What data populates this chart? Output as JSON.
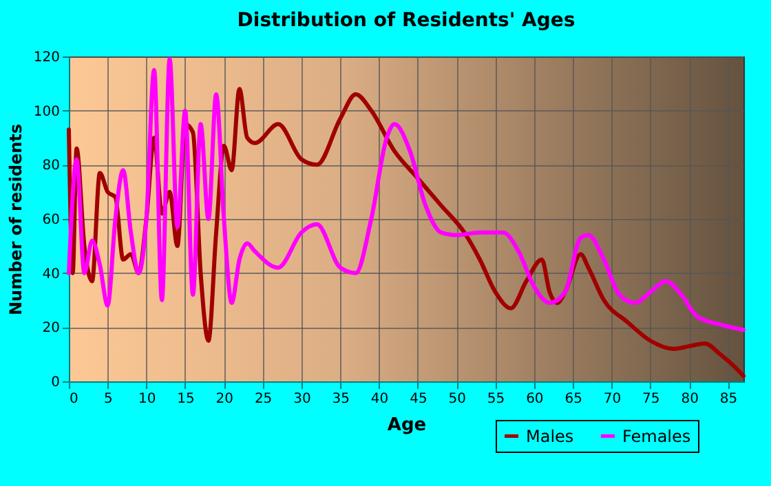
{
  "chart_data": {
    "type": "line",
    "title": "Distribution of Residents' Ages",
    "xlabel": "Age",
    "ylabel": "Number of residents",
    "xlim": [
      0,
      87
    ],
    "xticks": [
      0,
      5,
      10,
      15,
      20,
      25,
      30,
      35,
      40,
      45,
      50,
      55,
      60,
      65,
      70,
      75,
      80,
      85
    ],
    "ylim": [
      0,
      120
    ],
    "yticks": [
      0,
      20,
      40,
      60,
      80,
      100,
      120
    ],
    "grid": true,
    "legend": "bottom right",
    "marker": "none",
    "line_style": "solid",
    "series": [
      {
        "name": "Males",
        "color": "#a00000",
        "x": [
          0,
          0.5,
          1,
          2,
          3,
          4,
          5,
          6,
          7,
          8,
          9,
          10,
          11,
          12,
          13,
          14,
          15,
          16,
          17,
          18,
          19,
          20,
          21,
          22,
          23,
          24,
          27,
          30,
          32,
          35,
          37,
          39,
          42,
          45,
          48,
          51,
          53,
          55,
          57,
          59,
          61,
          62,
          63,
          64,
          66,
          67,
          69,
          72,
          75,
          78,
          80,
          82,
          84,
          86,
          87
        ],
        "values": [
          93,
          40,
          86,
          50,
          37,
          77,
          70,
          68,
          45,
          47,
          40,
          60,
          90,
          62,
          70,
          50,
          95,
          92,
          40,
          15,
          55,
          87,
          78,
          108,
          90,
          88,
          95,
          82,
          80,
          97,
          106,
          100,
          85,
          75,
          65,
          55,
          45,
          33,
          27,
          37,
          45,
          33,
          29,
          33,
          47,
          42,
          30,
          22,
          15,
          12,
          13,
          14,
          10,
          5,
          2
        ]
      },
      {
        "name": "Females",
        "color": "#ff00ff",
        "x": [
          0,
          1,
          2,
          3,
          4,
          5,
          6,
          7,
          8,
          9,
          10,
          11,
          12,
          13,
          14,
          15,
          16,
          17,
          18,
          19,
          20,
          21,
          22,
          23,
          24,
          27,
          30,
          32,
          35,
          37,
          39,
          41,
          42,
          44,
          46,
          48,
          50,
          53,
          56,
          58,
          60,
          62,
          64,
          66,
          67,
          69,
          71,
          73,
          75,
          77,
          79,
          81,
          84,
          87
        ],
        "values": [
          40,
          82,
          40,
          52,
          43,
          28,
          60,
          78,
          55,
          40,
          60,
          115,
          30,
          119,
          57,
          100,
          32,
          95,
          60,
          106,
          60,
          29,
          45,
          51,
          48,
          42,
          55,
          58,
          42,
          40,
          60,
          90,
          95,
          85,
          65,
          55,
          54,
          55,
          55,
          48,
          35,
          29,
          33,
          53,
          54,
          45,
          32,
          29,
          33,
          37,
          32,
          24,
          21,
          19
        ]
      }
    ]
  }
}
